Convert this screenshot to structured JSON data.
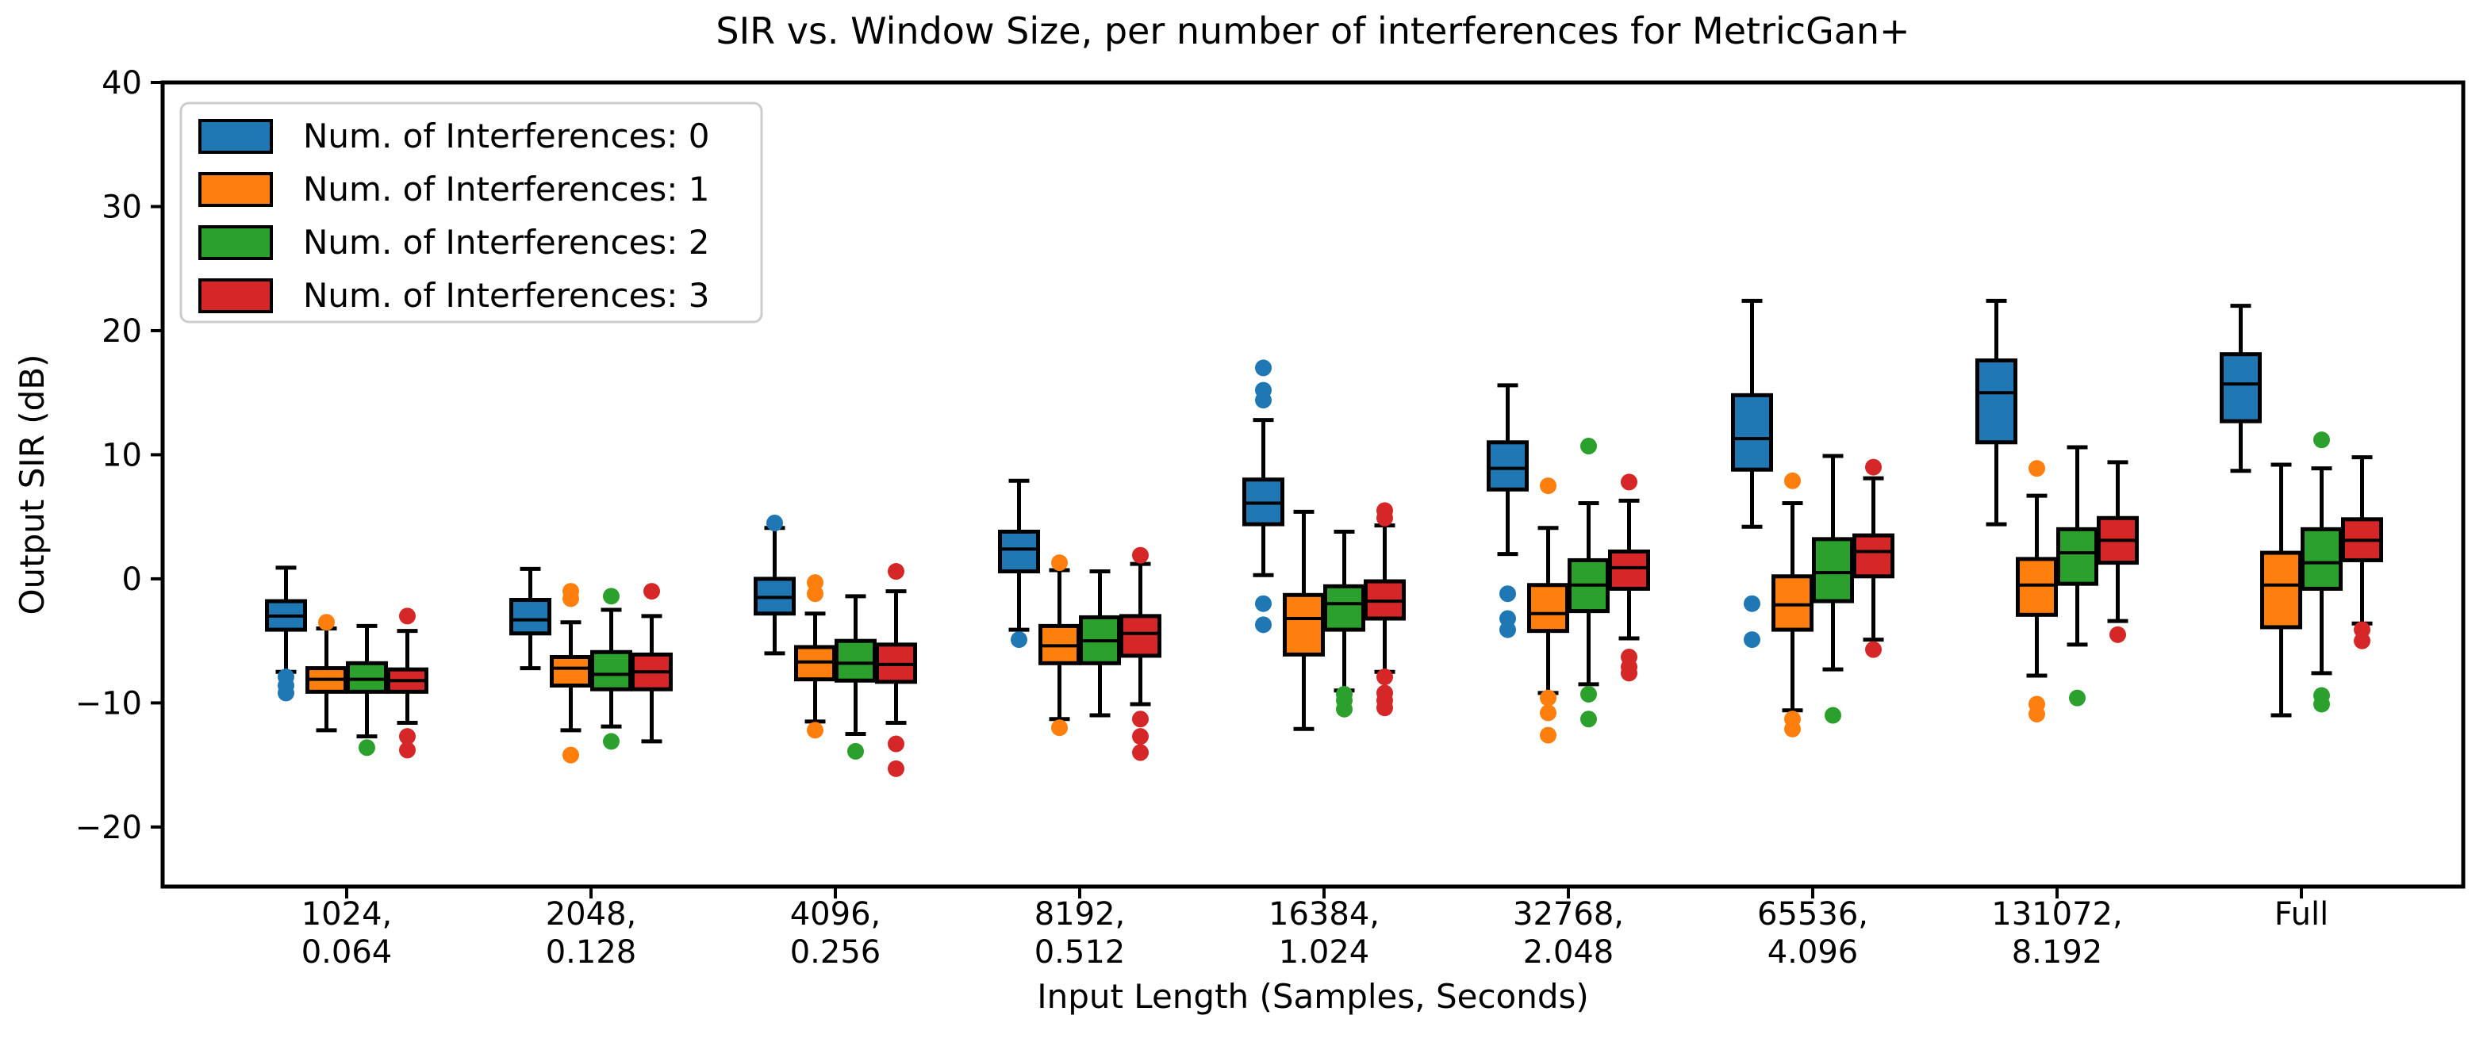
{
  "figure": {
    "background": "#ffffff"
  },
  "chart_data": {
    "type": "boxplot",
    "title": "SIR vs. Window Size, per number of interferences for MetricGan+",
    "xlabel": "Input Length (Samples, Seconds)",
    "ylabel": "Output SIR (dB)",
    "ylim": [
      -24.8,
      40
    ],
    "grid": false,
    "legend_position": "upper left",
    "yticks": [
      {
        "value": 40,
        "label": "40"
      },
      {
        "value": 30,
        "label": "30"
      },
      {
        "value": 20,
        "label": "20"
      },
      {
        "value": 10,
        "label": "10"
      },
      {
        "value": 0,
        "label": "0"
      },
      {
        "value": -10,
        "label": "−10"
      },
      {
        "value": -20,
        "label": "−20"
      }
    ],
    "categories": [
      [
        "1024,",
        "0.064"
      ],
      [
        "2048,",
        "0.128"
      ],
      [
        "4096,",
        "0.256"
      ],
      [
        "8192,",
        "0.512"
      ],
      [
        "16384,",
        "1.024"
      ],
      [
        "32768,",
        "2.048"
      ],
      [
        "65536,",
        "4.096"
      ],
      [
        "131072,",
        "8.192"
      ],
      [
        "Full"
      ]
    ],
    "series": [
      {
        "name": "Num. of Interferences: 0",
        "color": "#1f77b4",
        "boxes": [
          {
            "whislo": -7.5,
            "q1": -4.1,
            "med": -3.0,
            "q3": -1.8,
            "whishi": 0.9,
            "fliers": [
              -7.9,
              -8.6,
              -9.2
            ]
          },
          {
            "whislo": -7.2,
            "q1": -4.4,
            "med": -3.3,
            "q3": -1.7,
            "whishi": 0.8,
            "fliers": []
          },
          {
            "whislo": -6.0,
            "q1": -2.8,
            "med": -1.5,
            "q3": 0.0,
            "whishi": 4.1,
            "fliers": [
              4.5
            ]
          },
          {
            "whislo": -4.1,
            "q1": 0.6,
            "med": 2.4,
            "q3": 3.8,
            "whishi": 7.9,
            "fliers": [
              -4.9
            ]
          },
          {
            "whislo": 0.3,
            "q1": 4.4,
            "med": 6.1,
            "q3": 8.0,
            "whishi": 12.8,
            "fliers": [
              17.0,
              15.2,
              14.4,
              -2.0,
              -3.7
            ]
          },
          {
            "whislo": 2.0,
            "q1": 7.2,
            "med": 8.9,
            "q3": 11.0,
            "whishi": 15.6,
            "fliers": [
              -1.2,
              -3.2,
              -4.1
            ]
          },
          {
            "whislo": 4.2,
            "q1": 8.8,
            "med": 11.3,
            "q3": 14.8,
            "whishi": 22.4,
            "fliers": [
              -2.0,
              -4.9
            ]
          },
          {
            "whislo": 4.4,
            "q1": 11.0,
            "med": 15.0,
            "q3": 17.6,
            "whishi": 22.4,
            "fliers": []
          },
          {
            "whislo": 8.7,
            "q1": 12.7,
            "med": 15.7,
            "q3": 18.1,
            "whishi": 22.0,
            "fliers": []
          }
        ]
      },
      {
        "name": "Num. of Interferences: 1",
        "color": "#ff7f0e",
        "boxes": [
          {
            "whislo": -12.2,
            "q1": -9.1,
            "med": -8.1,
            "q3": -7.2,
            "whishi": -4.0,
            "fliers": [
              -3.5
            ]
          },
          {
            "whislo": -12.2,
            "q1": -8.6,
            "med": -7.2,
            "q3": -6.3,
            "whishi": -3.5,
            "fliers": [
              -1.0,
              -1.6,
              -14.2
            ]
          },
          {
            "whislo": -11.5,
            "q1": -8.1,
            "med": -6.7,
            "q3": -5.5,
            "whishi": -2.8,
            "fliers": [
              -0.3,
              -1.2,
              -12.2
            ]
          },
          {
            "whislo": -11.3,
            "q1": -6.8,
            "med": -5.4,
            "q3": -3.8,
            "whishi": 0.7,
            "fliers": [
              1.3,
              -12.0
            ]
          },
          {
            "whislo": -12.1,
            "q1": -6.1,
            "med": -3.2,
            "q3": -1.3,
            "whishi": 5.4,
            "fliers": []
          },
          {
            "whislo": -9.2,
            "q1": -4.2,
            "med": -2.8,
            "q3": -0.5,
            "whishi": 4.1,
            "fliers": [
              7.5,
              -9.6,
              -10.8,
              -12.6
            ]
          },
          {
            "whislo": -10.6,
            "q1": -4.1,
            "med": -2.1,
            "q3": 0.2,
            "whishi": 6.1,
            "fliers": [
              7.9,
              -11.3,
              -12.1
            ]
          },
          {
            "whislo": -7.8,
            "q1": -2.9,
            "med": -0.5,
            "q3": 1.6,
            "whishi": 6.7,
            "fliers": [
              8.9,
              -10.1,
              -10.9
            ]
          },
          {
            "whislo": -11.0,
            "q1": -3.9,
            "med": -0.5,
            "q3": 2.1,
            "whishi": 9.2,
            "fliers": []
          }
        ]
      },
      {
        "name": "Num. of Interferences: 2",
        "color": "#2ca02c",
        "boxes": [
          {
            "whislo": -12.7,
            "q1": -9.1,
            "med": -8.1,
            "q3": -6.8,
            "whishi": -3.8,
            "fliers": [
              -13.6
            ]
          },
          {
            "whislo": -11.9,
            "q1": -8.9,
            "med": -7.7,
            "q3": -5.9,
            "whishi": -2.5,
            "fliers": [
              -1.4,
              -13.1
            ]
          },
          {
            "whislo": -12.5,
            "q1": -8.2,
            "med": -6.8,
            "q3": -5.0,
            "whishi": -1.4,
            "fliers": [
              -13.9
            ]
          },
          {
            "whislo": -11.0,
            "q1": -6.8,
            "med": -5.0,
            "q3": -3.1,
            "whishi": 0.6,
            "fliers": []
          },
          {
            "whislo": -9.0,
            "q1": -4.1,
            "med": -2.0,
            "q3": -0.6,
            "whishi": 3.8,
            "fliers": [
              -9.3,
              -9.8,
              -10.5
            ]
          },
          {
            "whislo": -8.5,
            "q1": -2.6,
            "med": -0.5,
            "q3": 1.5,
            "whishi": 6.1,
            "fliers": [
              10.7,
              -9.3,
              -11.3
            ]
          },
          {
            "whislo": -7.3,
            "q1": -1.8,
            "med": 0.5,
            "q3": 3.2,
            "whishi": 9.9,
            "fliers": [
              -11.0
            ]
          },
          {
            "whislo": -5.3,
            "q1": -0.4,
            "med": 2.1,
            "q3": 4.0,
            "whishi": 10.6,
            "fliers": [
              -9.6
            ]
          },
          {
            "whislo": -7.6,
            "q1": -0.8,
            "med": 1.3,
            "q3": 4.0,
            "whishi": 8.9,
            "fliers": [
              11.2,
              -9.4,
              -10.1
            ]
          }
        ]
      },
      {
        "name": "Num. of Interferences: 3",
        "color": "#d62728",
        "boxes": [
          {
            "whislo": -11.6,
            "q1": -9.1,
            "med": -8.2,
            "q3": -7.3,
            "whishi": -4.2,
            "fliers": [
              -3.0,
              -12.7,
              -13.8
            ]
          },
          {
            "whislo": -13.1,
            "q1": -8.9,
            "med": -7.5,
            "q3": -6.1,
            "whishi": -3.0,
            "fliers": [
              -1.0
            ]
          },
          {
            "whislo": -11.6,
            "q1": -8.3,
            "med": -6.9,
            "q3": -5.3,
            "whishi": -1.0,
            "fliers": [
              0.6,
              -13.3,
              -15.3
            ]
          },
          {
            "whislo": -10.1,
            "q1": -6.2,
            "med": -4.4,
            "q3": -3.0,
            "whishi": 1.2,
            "fliers": [
              1.9,
              -11.3,
              -12.7,
              -14.0
            ]
          },
          {
            "whislo": -7.5,
            "q1": -3.2,
            "med": -1.8,
            "q3": -0.2,
            "whishi": 4.3,
            "fliers": [
              5.5,
              4.9,
              -7.9,
              -9.2,
              -9.8,
              -10.4
            ]
          },
          {
            "whislo": -4.8,
            "q1": -0.8,
            "med": 0.9,
            "q3": 2.2,
            "whishi": 6.3,
            "fliers": [
              7.8,
              -6.3,
              -7.1,
              -7.6
            ]
          },
          {
            "whislo": -4.9,
            "q1": 0.2,
            "med": 2.2,
            "q3": 3.5,
            "whishi": 8.1,
            "fliers": [
              9.0,
              -5.7
            ]
          },
          {
            "whislo": -3.4,
            "q1": 1.3,
            "med": 3.1,
            "q3": 4.9,
            "whishi": 9.4,
            "fliers": [
              -4.5
            ]
          },
          {
            "whislo": -3.6,
            "q1": 1.5,
            "med": 3.1,
            "q3": 4.8,
            "whishi": 9.8,
            "fliers": [
              -4.1,
              -5.0
            ]
          }
        ]
      }
    ]
  }
}
